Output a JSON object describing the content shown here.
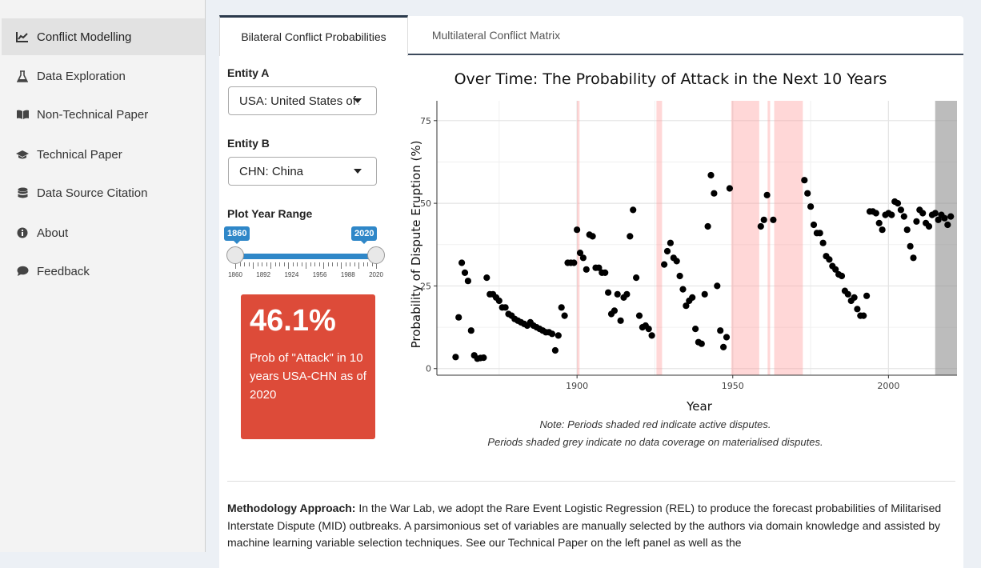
{
  "sidebar": {
    "items": [
      {
        "label": "Conflict Modelling",
        "icon": "line-chart-icon"
      },
      {
        "label": "Data Exploration",
        "icon": "flask-icon"
      },
      {
        "label": "Non-Technical Paper",
        "icon": "book-icon"
      },
      {
        "label": "Technical Paper",
        "icon": "graduation-cap-icon"
      },
      {
        "label": "Data Source Citation",
        "icon": "database-icon"
      },
      {
        "label": "About",
        "icon": "info-icon"
      },
      {
        "label": "Feedback",
        "icon": "comment-icon"
      }
    ]
  },
  "tabs": [
    {
      "label": "Bilateral Conflict Probabilities",
      "active": true
    },
    {
      "label": "Multilateral Conflict Matrix",
      "active": false
    }
  ],
  "controls": {
    "entity_a_label": "Entity A",
    "entity_a_value": "USA: United States of America",
    "entity_b_label": "Entity B",
    "entity_b_value": "CHN: China",
    "year_range_label": "Plot Year Range",
    "year_range": {
      "min": 1860,
      "max": 2020,
      "from": 1860,
      "to": 2020,
      "tick_labels": [
        "1860",
        "1892",
        "1924",
        "1956",
        "1988",
        "2020"
      ]
    }
  },
  "result": {
    "value": "46.1%",
    "text": "Prob of \"Attack\" in 10 years USA-CHN as of 2020",
    "color": "#dd4b39"
  },
  "chart_data": {
    "type": "scatter",
    "title": "Over Time: The Probability of Attack in the Next 10 Years",
    "xlabel": "Year",
    "ylabel": "Probability of Dispute Eruption (%)",
    "xlim": [
      1855,
      2022
    ],
    "ylim": [
      -2,
      81
    ],
    "xticks": [
      1900,
      1950,
      2000
    ],
    "yticks": [
      0,
      25,
      50,
      75
    ],
    "grid": true,
    "red_periods": [
      [
        1900,
        1900.8
      ],
      [
        1925.5,
        1927.3
      ],
      [
        1949.5,
        1958.5
      ],
      [
        1961.2,
        1962
      ],
      [
        1963.3,
        1972.5
      ]
    ],
    "grey_periods": [
      [
        2015,
        2022
      ]
    ],
    "note_lines": [
      "Note: Periods shaded red indicate active disputes.",
      "Periods shaded grey indicate no data coverage on materialised disputes."
    ],
    "points": [
      [
        1861,
        3.5
      ],
      [
        1862,
        15.5
      ],
      [
        1863,
        32
      ],
      [
        1864,
        29
      ],
      [
        1865,
        26.5
      ],
      [
        1866,
        11.5
      ],
      [
        1867,
        4
      ],
      [
        1868,
        3
      ],
      [
        1869,
        3.2
      ],
      [
        1870,
        3.3
      ],
      [
        1871,
        27.5
      ],
      [
        1872,
        22.5
      ],
      [
        1873,
        22.5
      ],
      [
        1874,
        21.5
      ],
      [
        1875,
        20.5
      ],
      [
        1876,
        18.5
      ],
      [
        1877,
        18.5
      ],
      [
        1878,
        16.5
      ],
      [
        1879,
        16
      ],
      [
        1880,
        15
      ],
      [
        1881,
        14.5
      ],
      [
        1882,
        14
      ],
      [
        1883,
        13.5
      ],
      [
        1884,
        13
      ],
      [
        1885,
        14
      ],
      [
        1886,
        13
      ],
      [
        1887,
        12.5
      ],
      [
        1888,
        12
      ],
      [
        1889,
        11.5
      ],
      [
        1890,
        11
      ],
      [
        1891,
        11
      ],
      [
        1892,
        10.5
      ],
      [
        1893,
        5.5
      ],
      [
        1894,
        10
      ],
      [
        1895,
        18.5
      ],
      [
        1896,
        16
      ],
      [
        1897,
        32
      ],
      [
        1898,
        32
      ],
      [
        1899,
        32
      ],
      [
        1900,
        42
      ],
      [
        1901,
        35
      ],
      [
        1902,
        33.5
      ],
      [
        1903,
        30
      ],
      [
        1904,
        40.5
      ],
      [
        1905,
        40
      ],
      [
        1906,
        30.5
      ],
      [
        1907,
        30.5
      ],
      [
        1908,
        29
      ],
      [
        1909,
        29
      ],
      [
        1910,
        23
      ],
      [
        1911,
        16.5
      ],
      [
        1912,
        17.5
      ],
      [
        1913,
        22.5
      ],
      [
        1914,
        14.5
      ],
      [
        1915,
        21.5
      ],
      [
        1916,
        22.5
      ],
      [
        1917,
        40
      ],
      [
        1918,
        48
      ],
      [
        1919,
        27.5
      ],
      [
        1920,
        16
      ],
      [
        1921,
        12.5
      ],
      [
        1922,
        13
      ],
      [
        1923,
        12
      ],
      [
        1924,
        10
      ],
      [
        1928,
        31.5
      ],
      [
        1929,
        35.5
      ],
      [
        1930,
        38
      ],
      [
        1931,
        33.5
      ],
      [
        1932,
        32.5
      ],
      [
        1933,
        28
      ],
      [
        1934,
        24
      ],
      [
        1935,
        19
      ],
      [
        1936,
        20.5
      ],
      [
        1937,
        21.5
      ],
      [
        1938,
        12
      ],
      [
        1939,
        8
      ],
      [
        1940,
        7.5
      ],
      [
        1941,
        22.5
      ],
      [
        1942,
        43
      ],
      [
        1943,
        58.5
      ],
      [
        1944,
        53
      ],
      [
        1945,
        25
      ],
      [
        1946,
        11.5
      ],
      [
        1947,
        6.5
      ],
      [
        1948,
        9.5
      ],
      [
        1949,
        54.5
      ],
      [
        1959,
        43
      ],
      [
        1960,
        45
      ],
      [
        1961,
        52.5
      ],
      [
        1963,
        45
      ],
      [
        1973,
        57
      ],
      [
        1974,
        53
      ],
      [
        1975,
        49
      ],
      [
        1976,
        43.5
      ],
      [
        1977,
        41
      ],
      [
        1978,
        41
      ],
      [
        1979,
        38
      ],
      [
        1980,
        34
      ],
      [
        1981,
        33
      ],
      [
        1982,
        31
      ],
      [
        1983,
        30
      ],
      [
        1984,
        28.5
      ],
      [
        1985,
        28
      ],
      [
        1986,
        23.5
      ],
      [
        1987,
        22.5
      ],
      [
        1988,
        20.5
      ],
      [
        1989,
        21.5
      ],
      [
        1990,
        18
      ],
      [
        1991,
        16
      ],
      [
        1992,
        16
      ],
      [
        1993,
        22
      ],
      [
        1994,
        47.5
      ],
      [
        1995,
        47.5
      ],
      [
        1996,
        47
      ],
      [
        1997,
        44
      ],
      [
        1998,
        42
      ],
      [
        1999,
        46.5
      ],
      [
        2000,
        47
      ],
      [
        2001,
        46.5
      ],
      [
        2002,
        50.5
      ],
      [
        2003,
        50
      ],
      [
        2004,
        48
      ],
      [
        2005,
        46
      ],
      [
        2006,
        42
      ],
      [
        2007,
        37
      ],
      [
        2008,
        33.5
      ],
      [
        2009,
        44.5
      ],
      [
        2010,
        48
      ],
      [
        2011,
        47
      ],
      [
        2012,
        44
      ],
      [
        2013,
        43
      ],
      [
        2014,
        46.5
      ],
      [
        2015,
        47
      ],
      [
        2016,
        45
      ],
      [
        2017,
        46.5
      ],
      [
        2018,
        45.5
      ],
      [
        2019,
        43.5
      ],
      [
        2020,
        46
      ]
    ]
  },
  "methodology": {
    "heading": "Methodology Approach:",
    "text": " In the War Lab, we adopt the Rare Event Logistic Regression (REL) to produce the forecast probabilities of Militarised Interstate Dispute (MID) outbreaks. A parsimonious set of variables are manually selected by the authors via domain knowledge and assisted by machine learning variable selection techniques. See our Technical Paper on the left panel as well as the"
  }
}
